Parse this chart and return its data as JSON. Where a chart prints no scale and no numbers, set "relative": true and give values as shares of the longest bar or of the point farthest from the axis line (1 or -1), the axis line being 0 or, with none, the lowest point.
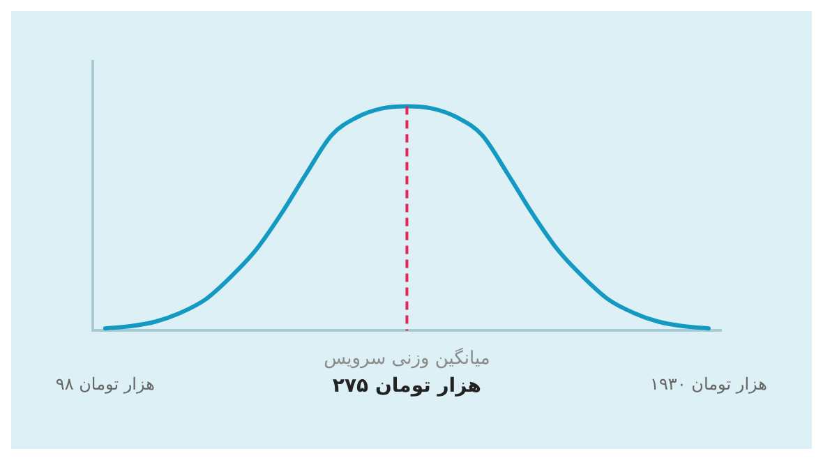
{
  "chart_data": {
    "type": "line",
    "relative": true,
    "color": "#1399c2",
    "categories": [
      "۹۸ هزار تومان",
      null,
      null,
      null,
      null,
      null,
      null,
      null,
      null,
      null,
      null,
      null,
      "۲۷۵ هزار تومان",
      null,
      null,
      null,
      null,
      null,
      null,
      null,
      null,
      null,
      null,
      null,
      "۱۹۳۰ هزار تومان"
    ],
    "values": [
      0.01,
      0.02,
      0.04,
      0.08,
      0.14,
      0.24,
      0.36,
      0.52,
      0.7,
      0.87,
      0.95,
      0.99,
      1,
      0.99,
      0.95,
      0.87,
      0.7,
      0.52,
      0.36,
      0.24,
      0.14,
      0.08,
      0.04,
      0.02,
      0.01
    ],
    "ref_lines": [
      {
        "axis": "x",
        "value": "۲۷۵ هزار تومان",
        "label": "میانگین وزنی سرویس",
        "color": "#e8245a",
        "line_style": "dashed"
      }
    ],
    "marker": "none",
    "grid": false,
    "legend": false
  }
}
